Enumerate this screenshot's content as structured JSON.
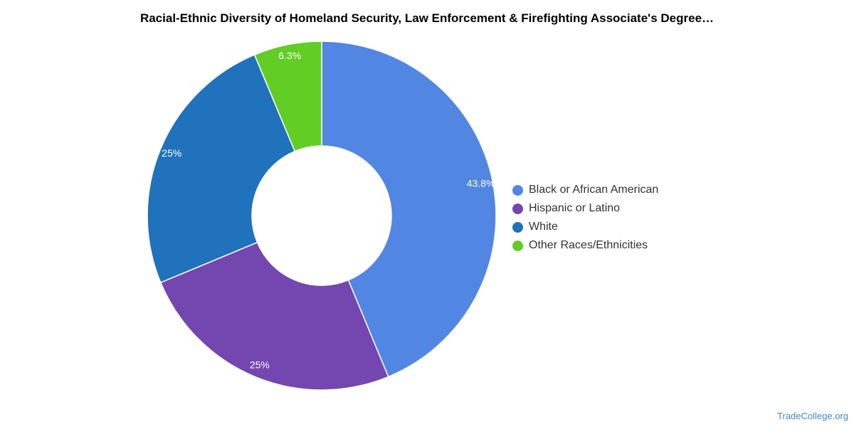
{
  "chart_data": {
    "type": "pie",
    "title": "Racial-Ethnic Diversity of Homeland Security, Law Enforcement & Firefighting Associate's Degree…",
    "series": [
      {
        "name": "Black or African American",
        "value": 43.8,
        "label": "43.8%",
        "color": "#5286e3"
      },
      {
        "name": "Hispanic or Latino",
        "value": 25,
        "label": "25%",
        "color": "#7446af"
      },
      {
        "name": "White",
        "value": 25,
        "label": "25%",
        "color": "#1f72bb"
      },
      {
        "name": "Other Races/Ethnicities",
        "value": 6.3,
        "label": "6.3%",
        "color": "#62cd25"
      }
    ],
    "legend_position": "right",
    "donut": true
  },
  "credit": "TradeCollege.org"
}
